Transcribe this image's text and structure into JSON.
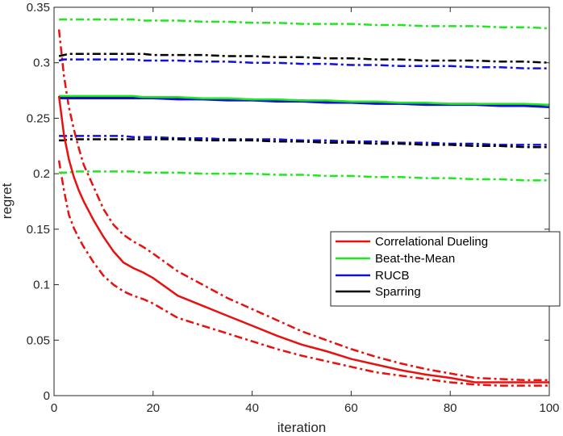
{
  "chart_data": {
    "type": "line",
    "title": "",
    "xlabel": "iteration",
    "ylabel": "regret",
    "xlim": [
      0,
      100
    ],
    "ylim": [
      0,
      0.35
    ],
    "xticks": [
      0,
      20,
      40,
      60,
      80,
      100
    ],
    "xtick_labels": [
      "0",
      "20",
      "40",
      "60",
      "80",
      "100"
    ],
    "yticks": [
      0,
      0.05,
      0.1,
      0.15,
      0.2,
      0.25,
      0.3,
      0.35
    ],
    "ytick_labels": [
      "0",
      "0.05",
      "0.1",
      "0.15",
      "0.2",
      "0.25",
      "0.3",
      "0.35"
    ],
    "grid": false,
    "legend_position": "center-right",
    "x": [
      1,
      2,
      3,
      4,
      5,
      6,
      8,
      10,
      12,
      14,
      16,
      18,
      20,
      25,
      30,
      35,
      40,
      45,
      50,
      55,
      60,
      65,
      70,
      75,
      80,
      85,
      90,
      95,
      100
    ],
    "series": [
      {
        "name": "Correlational Dueling",
        "color": "#e8110f",
        "mean": [
          0.27,
          0.235,
          0.213,
          0.197,
          0.185,
          0.175,
          0.158,
          0.143,
          0.13,
          0.12,
          0.115,
          0.111,
          0.106,
          0.09,
          0.081,
          0.072,
          0.063,
          0.054,
          0.046,
          0.04,
          0.033,
          0.028,
          0.023,
          0.019,
          0.016,
          0.012,
          0.012,
          0.012,
          0.012
        ],
        "upper": [
          0.33,
          0.288,
          0.26,
          0.24,
          0.223,
          0.208,
          0.188,
          0.168,
          0.154,
          0.145,
          0.139,
          0.134,
          0.128,
          0.112,
          0.1,
          0.088,
          0.078,
          0.068,
          0.058,
          0.05,
          0.042,
          0.035,
          0.029,
          0.024,
          0.02,
          0.016,
          0.015,
          0.014,
          0.014
        ],
        "lower": [
          0.212,
          0.185,
          0.163,
          0.151,
          0.142,
          0.134,
          0.12,
          0.108,
          0.1,
          0.094,
          0.09,
          0.087,
          0.083,
          0.07,
          0.063,
          0.056,
          0.049,
          0.042,
          0.036,
          0.031,
          0.026,
          0.021,
          0.018,
          0.015,
          0.012,
          0.01,
          0.009,
          0.009,
          0.009
        ]
      },
      {
        "name": "Beat-the-Mean",
        "color": "#1ee81e",
        "mean": [
          0.27,
          0.27,
          0.27,
          0.27,
          0.27,
          0.27,
          0.27,
          0.27,
          0.27,
          0.27,
          0.27,
          0.269,
          0.269,
          0.269,
          0.268,
          0.268,
          0.267,
          0.267,
          0.266,
          0.266,
          0.265,
          0.265,
          0.264,
          0.264,
          0.263,
          0.263,
          0.263,
          0.263,
          0.262
        ],
        "upper": [
          0.339,
          0.339,
          0.339,
          0.339,
          0.339,
          0.339,
          0.339,
          0.339,
          0.339,
          0.339,
          0.339,
          0.338,
          0.338,
          0.338,
          0.337,
          0.337,
          0.336,
          0.336,
          0.335,
          0.335,
          0.335,
          0.334,
          0.334,
          0.333,
          0.333,
          0.333,
          0.332,
          0.332,
          0.331
        ],
        "lower": [
          0.201,
          0.201,
          0.201,
          0.202,
          0.202,
          0.202,
          0.202,
          0.202,
          0.202,
          0.202,
          0.202,
          0.201,
          0.201,
          0.201,
          0.2,
          0.2,
          0.2,
          0.199,
          0.199,
          0.198,
          0.198,
          0.197,
          0.197,
          0.196,
          0.196,
          0.195,
          0.195,
          0.194,
          0.194
        ]
      },
      {
        "name": "RUCB",
        "color": "#1010dd",
        "mean": [
          0.268,
          0.268,
          0.268,
          0.268,
          0.268,
          0.268,
          0.268,
          0.268,
          0.268,
          0.268,
          0.268,
          0.268,
          0.268,
          0.267,
          0.267,
          0.266,
          0.266,
          0.265,
          0.265,
          0.264,
          0.264,
          0.263,
          0.263,
          0.262,
          0.262,
          0.262,
          0.261,
          0.261,
          0.26
        ],
        "upper": [
          0.302,
          0.303,
          0.303,
          0.303,
          0.303,
          0.303,
          0.303,
          0.303,
          0.303,
          0.303,
          0.303,
          0.302,
          0.302,
          0.302,
          0.301,
          0.301,
          0.3,
          0.3,
          0.299,
          0.299,
          0.298,
          0.298,
          0.297,
          0.297,
          0.297,
          0.296,
          0.296,
          0.295,
          0.295
        ],
        "lower": [
          0.234,
          0.234,
          0.234,
          0.234,
          0.234,
          0.234,
          0.234,
          0.234,
          0.234,
          0.234,
          0.233,
          0.233,
          0.233,
          0.232,
          0.232,
          0.231,
          0.231,
          0.231,
          0.23,
          0.23,
          0.229,
          0.229,
          0.228,
          0.228,
          0.227,
          0.227,
          0.226,
          0.226,
          0.226
        ]
      },
      {
        "name": "Sparring",
        "color": "#000000",
        "mean": [
          0.269,
          0.269,
          0.269,
          0.269,
          0.269,
          0.269,
          0.269,
          0.269,
          0.269,
          0.269,
          0.269,
          0.269,
          0.269,
          0.268,
          0.268,
          0.267,
          0.267,
          0.266,
          0.266,
          0.265,
          0.265,
          0.264,
          0.264,
          0.263,
          0.263,
          0.263,
          0.262,
          0.262,
          0.262
        ],
        "upper": [
          0.306,
          0.307,
          0.308,
          0.308,
          0.308,
          0.308,
          0.308,
          0.308,
          0.308,
          0.308,
          0.308,
          0.308,
          0.307,
          0.307,
          0.307,
          0.306,
          0.306,
          0.305,
          0.305,
          0.304,
          0.304,
          0.303,
          0.303,
          0.302,
          0.302,
          0.302,
          0.301,
          0.301,
          0.3
        ],
        "lower": [
          0.23,
          0.23,
          0.231,
          0.231,
          0.231,
          0.231,
          0.231,
          0.231,
          0.231,
          0.231,
          0.231,
          0.231,
          0.231,
          0.231,
          0.23,
          0.23,
          0.23,
          0.229,
          0.229,
          0.228,
          0.228,
          0.227,
          0.227,
          0.226,
          0.226,
          0.225,
          0.225,
          0.224,
          0.224
        ]
      }
    ]
  }
}
